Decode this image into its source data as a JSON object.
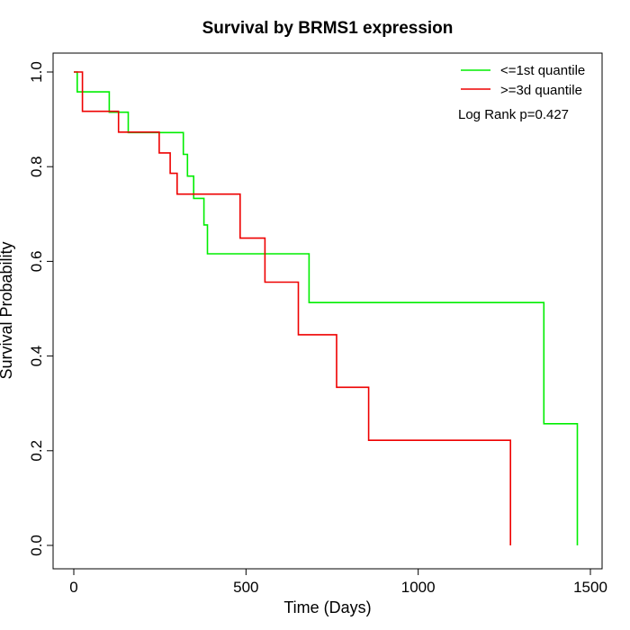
{
  "chart_data": {
    "type": "line",
    "step": true,
    "title": "Survival by BRMS1 expression",
    "xlabel": "Time (Days)",
    "ylabel": "Survival Probability",
    "xlim": [
      0,
      1500
    ],
    "ylim": [
      0,
      1
    ],
    "x_ticks": [
      0,
      500,
      1000,
      1500
    ],
    "x_tick_labels": [
      "0",
      "500",
      "1000",
      "1500"
    ],
    "y_ticks": [
      0,
      0.2,
      0.4,
      0.6,
      0.8,
      1.0
    ],
    "y_tick_labels": [
      "0.0",
      "0.2",
      "0.4",
      "0.6",
      "0.8",
      "1.0"
    ],
    "grid": false,
    "legend_position": "top-right",
    "annotation": "Log Rank p=0.427",
    "series": [
      {
        "name": "<=1st quantile",
        "color": "#00ee00",
        "points": [
          [
            0,
            1.0
          ],
          [
            10,
            1.0
          ],
          [
            10,
            0.958
          ],
          [
            103,
            0.958
          ],
          [
            103,
            0.915
          ],
          [
            158,
            0.915
          ],
          [
            158,
            0.872
          ],
          [
            318,
            0.872
          ],
          [
            318,
            0.826
          ],
          [
            330,
            0.826
          ],
          [
            330,
            0.78
          ],
          [
            348,
            0.78
          ],
          [
            348,
            0.733
          ],
          [
            378,
            0.733
          ],
          [
            378,
            0.677
          ],
          [
            388,
            0.677
          ],
          [
            388,
            0.616
          ],
          [
            683,
            0.616
          ],
          [
            683,
            0.513
          ],
          [
            1365,
            0.513
          ],
          [
            1365,
            0.257
          ],
          [
            1462,
            0.257
          ],
          [
            1462,
            0.0
          ]
        ]
      },
      {
        "name": ">=3d quantile",
        "color": "#ee0000",
        "points": [
          [
            0,
            1.0
          ],
          [
            25,
            1.0
          ],
          [
            25,
            0.917
          ],
          [
            130,
            0.917
          ],
          [
            130,
            0.873
          ],
          [
            248,
            0.873
          ],
          [
            248,
            0.829
          ],
          [
            280,
            0.829
          ],
          [
            280,
            0.786
          ],
          [
            300,
            0.786
          ],
          [
            300,
            0.742
          ],
          [
            483,
            0.742
          ],
          [
            483,
            0.649
          ],
          [
            555,
            0.649
          ],
          [
            555,
            0.556
          ],
          [
            652,
            0.556
          ],
          [
            652,
            0.445
          ],
          [
            763,
            0.445
          ],
          [
            763,
            0.334
          ],
          [
            856,
            0.334
          ],
          [
            856,
            0.222
          ],
          [
            1268,
            0.222
          ],
          [
            1268,
            0.0
          ]
        ]
      }
    ]
  }
}
